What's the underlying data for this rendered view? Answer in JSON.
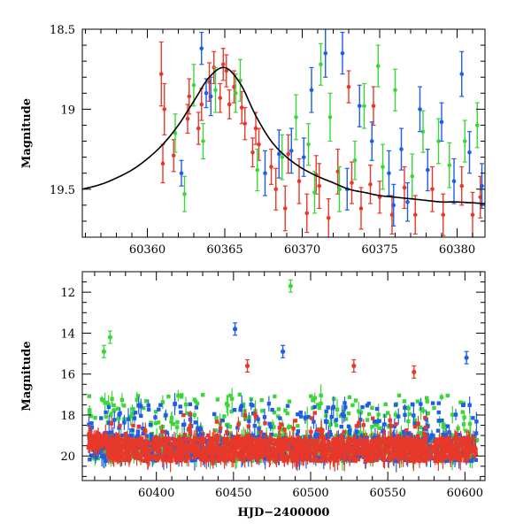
{
  "chart_data": [
    {
      "type": "scatter",
      "panel": "top",
      "title": "",
      "xlabel": "",
      "ylabel": "Magnitude",
      "xlim": [
        60355.8,
        60381.8
      ],
      "ylim": [
        19.8,
        18.5
      ],
      "y_inverted": true,
      "xticks": [
        60360,
        60365,
        60370,
        60375,
        60380
      ],
      "yticks": [
        18.5,
        19,
        19.5
      ],
      "ytick_labels": [
        "18.5",
        "19",
        "19.5"
      ],
      "model_curve": {
        "description_color": "#000000",
        "peak_x": 60365.0,
        "peak_y": 18.74,
        "baseline_y": 19.59,
        "points": [
          [
            60355.8,
            19.5
          ],
          [
            60357,
            19.47
          ],
          [
            60358,
            19.43
          ],
          [
            60359,
            19.38
          ],
          [
            60360,
            19.31
          ],
          [
            60361,
            19.22
          ],
          [
            60362,
            19.1
          ],
          [
            60363,
            18.95
          ],
          [
            60364,
            18.8
          ],
          [
            60365,
            18.74
          ],
          [
            60366,
            18.84
          ],
          [
            60367,
            19.04
          ],
          [
            60368,
            19.2
          ],
          [
            60369,
            19.3
          ],
          [
            60370,
            19.37
          ],
          [
            60371,
            19.42
          ],
          [
            60372,
            19.46
          ],
          [
            60373,
            19.5
          ],
          [
            60374,
            19.52
          ],
          [
            60375,
            19.54
          ],
          [
            60376,
            19.55
          ],
          [
            60377,
            19.56
          ],
          [
            60378,
            19.57
          ],
          [
            60379,
            19.58
          ],
          [
            60380,
            19.58
          ],
          [
            60381.8,
            19.59
          ]
        ]
      },
      "series": [
        {
          "color": "#e8382a",
          "points": [
            [
              60360.9,
              18.78,
              0.2
            ],
            [
              60361.0,
              19.34,
              0.12
            ],
            [
              60361.1,
              19.0,
              0.16
            ],
            [
              60361.7,
              19.29,
              0.1
            ],
            [
              60362.6,
              19.06,
              0.09
            ],
            [
              60362.7,
              18.92,
              0.11
            ],
            [
              60363.3,
              19.12,
              0.1
            ],
            [
              60363.5,
              18.97,
              0.1
            ],
            [
              60364.0,
              18.83,
              0.12
            ],
            [
              60364.3,
              18.74,
              0.1
            ],
            [
              60364.7,
              18.93,
              0.09
            ],
            [
              60364.9,
              18.72,
              0.1
            ],
            [
              60365.1,
              18.76,
              0.1
            ],
            [
              60365.3,
              18.97,
              0.09
            ],
            [
              60365.6,
              18.86,
              0.1
            ],
            [
              60366.1,
              18.99,
              0.1
            ],
            [
              60366.3,
              19.09,
              0.1
            ],
            [
              60366.8,
              19.27,
              0.09
            ],
            [
              60367.0,
              19.12,
              0.1
            ],
            [
              60367.2,
              19.22,
              0.1
            ],
            [
              60368.0,
              19.36,
              0.11
            ],
            [
              60368.3,
              19.5,
              0.13
            ],
            [
              60368.9,
              19.62,
              0.14
            ],
            [
              60369.1,
              19.28,
              0.12
            ],
            [
              60369.8,
              19.45,
              0.14
            ],
            [
              60370.3,
              19.65,
              0.12
            ],
            [
              60370.9,
              19.41,
              0.12
            ],
            [
              60371.1,
              19.48,
              0.14
            ],
            [
              60371.7,
              19.68,
              0.12
            ],
            [
              60372.3,
              19.39,
              0.14
            ],
            [
              60373.2,
              19.46,
              0.13
            ],
            [
              60373.8,
              19.62,
              0.13
            ],
            [
              60374.4,
              19.47,
              0.12
            ],
            [
              60375.0,
              19.55,
              0.1
            ],
            [
              60375.8,
              19.66,
              0.12
            ],
            [
              60376.6,
              19.49,
              0.13
            ],
            [
              60377.3,
              19.66,
              0.12
            ],
            [
              60378.4,
              19.5,
              0.14
            ],
            [
              60379.1,
              19.66,
              0.13
            ],
            [
              60380.3,
              19.48,
              0.12
            ],
            [
              60381.0,
              19.66,
              0.14
            ],
            [
              60381.5,
              19.55,
              0.13
            ],
            [
              60374.6,
              18.98,
              0.12
            ],
            [
              60373.0,
              18.86,
              0.1
            ]
          ]
        },
        {
          "color": "#3bd63a",
          "points": [
            [
              60361.8,
              19.15,
              0.12
            ],
            [
              60362.4,
              19.53,
              0.11
            ],
            [
              60363.0,
              18.85,
              0.13
            ],
            [
              60363.6,
              19.2,
              0.11
            ],
            [
              60364.4,
              18.88,
              0.14
            ],
            [
              60366.0,
              18.82,
              0.13
            ],
            [
              60367.1,
              19.38,
              0.13
            ],
            [
              60368.7,
              19.3,
              0.14
            ],
            [
              60369.6,
              19.05,
              0.14
            ],
            [
              60370.4,
              19.22,
              0.13
            ],
            [
              60371.2,
              18.72,
              0.13
            ],
            [
              60371.8,
              19.05,
              0.15
            ],
            [
              60372.4,
              19.5,
              0.14
            ],
            [
              60373.4,
              19.32,
              0.12
            ],
            [
              60374.0,
              18.98,
              0.14
            ],
            [
              60375.2,
              19.36,
              0.14
            ],
            [
              60376.0,
              18.88,
              0.13
            ],
            [
              60377.1,
              19.42,
              0.14
            ],
            [
              60377.8,
              19.14,
              0.13
            ],
            [
              60378.8,
              19.2,
              0.14
            ],
            [
              60379.5,
              19.35,
              0.14
            ],
            [
              60380.5,
              19.2,
              0.13
            ],
            [
              60381.3,
              19.1,
              0.14
            ],
            [
              60365.7,
              18.9,
              0.12
            ],
            [
              60370.8,
              19.52,
              0.13
            ],
            [
              60374.9,
              18.73,
              0.13
            ]
          ]
        },
        {
          "color": "#1d5ee8",
          "points": [
            [
              60362.2,
              19.4,
              0.08
            ],
            [
              60363.5,
              18.62,
              0.1
            ],
            [
              60363.8,
              18.9,
              0.09
            ],
            [
              60364.1,
              18.92,
              0.12
            ],
            [
              60367.6,
              19.4,
              0.14
            ],
            [
              60368.5,
              19.28,
              0.15
            ],
            [
              60369.3,
              19.26,
              0.14
            ],
            [
              60370.1,
              19.3,
              0.12
            ],
            [
              60370.6,
              18.88,
              0.14
            ],
            [
              60371.5,
              18.65,
              0.15
            ],
            [
              60372.9,
              19.5,
              0.13
            ],
            [
              60373.7,
              18.98,
              0.13
            ],
            [
              60374.5,
              19.2,
              0.12
            ],
            [
              60375.6,
              19.4,
              0.14
            ],
            [
              60376.4,
              19.25,
              0.13
            ],
            [
              60376.8,
              19.58,
              0.12
            ],
            [
              60377.6,
              19.0,
              0.14
            ],
            [
              60378.1,
              19.38,
              0.13
            ],
            [
              60379.0,
              19.08,
              0.12
            ],
            [
              60379.8,
              19.45,
              0.14
            ],
            [
              60380.3,
              18.78,
              0.14
            ],
            [
              60380.8,
              19.27,
              0.13
            ],
            [
              60381.6,
              19.48,
              0.14
            ],
            [
              60372.6,
              18.65,
              0.13
            ],
            [
              60375.9,
              19.6,
              0.13
            ]
          ]
        }
      ]
    },
    {
      "type": "scatter",
      "panel": "bottom",
      "title": "",
      "xlabel": "HJD−2400000",
      "ylabel": "Magnitude",
      "xlim": [
        60352,
        60613
      ],
      "ylim": [
        21.2,
        11.0
      ],
      "y_inverted": true,
      "xticks": [
        60400,
        60450,
        60500,
        60550,
        60600
      ],
      "yticks": [
        12,
        14,
        16,
        18,
        20
      ],
      "ytick_labels": [
        "12",
        "14",
        "16",
        "18",
        "20"
      ],
      "bright_outliers": [
        {
          "color": "#3bd63a",
          "x": 60366,
          "y": 14.9
        },
        {
          "color": "#3bd63a",
          "x": 60370,
          "y": 14.2
        },
        {
          "color": "#3bd63a",
          "x": 60487,
          "y": 11.7
        },
        {
          "color": "#1d5ee8",
          "x": 60451,
          "y": 13.8
        },
        {
          "color": "#1d5ee8",
          "x": 60482,
          "y": 14.9
        },
        {
          "color": "#1d5ee8",
          "x": 60601,
          "y": 15.2
        },
        {
          "color": "#e8382a",
          "x": 60459,
          "y": 15.6
        },
        {
          "color": "#e8382a",
          "x": 60528,
          "y": 15.6
        },
        {
          "color": "#e8382a",
          "x": 60567,
          "y": 15.9
        }
      ],
      "series": [
        {
          "color": "#3bd63a",
          "x_range": [
            60356,
            60608
          ],
          "typical_y": [
            17.0,
            20.0
          ]
        },
        {
          "color": "#1d5ee8",
          "x_range": [
            60356,
            60608
          ],
          "typical_y": [
            17.4,
            20.3
          ]
        },
        {
          "color": "#e8382a",
          "x_range": [
            60356,
            60608
          ],
          "typical_y": [
            18.6,
            20.2
          ]
        }
      ]
    }
  ]
}
